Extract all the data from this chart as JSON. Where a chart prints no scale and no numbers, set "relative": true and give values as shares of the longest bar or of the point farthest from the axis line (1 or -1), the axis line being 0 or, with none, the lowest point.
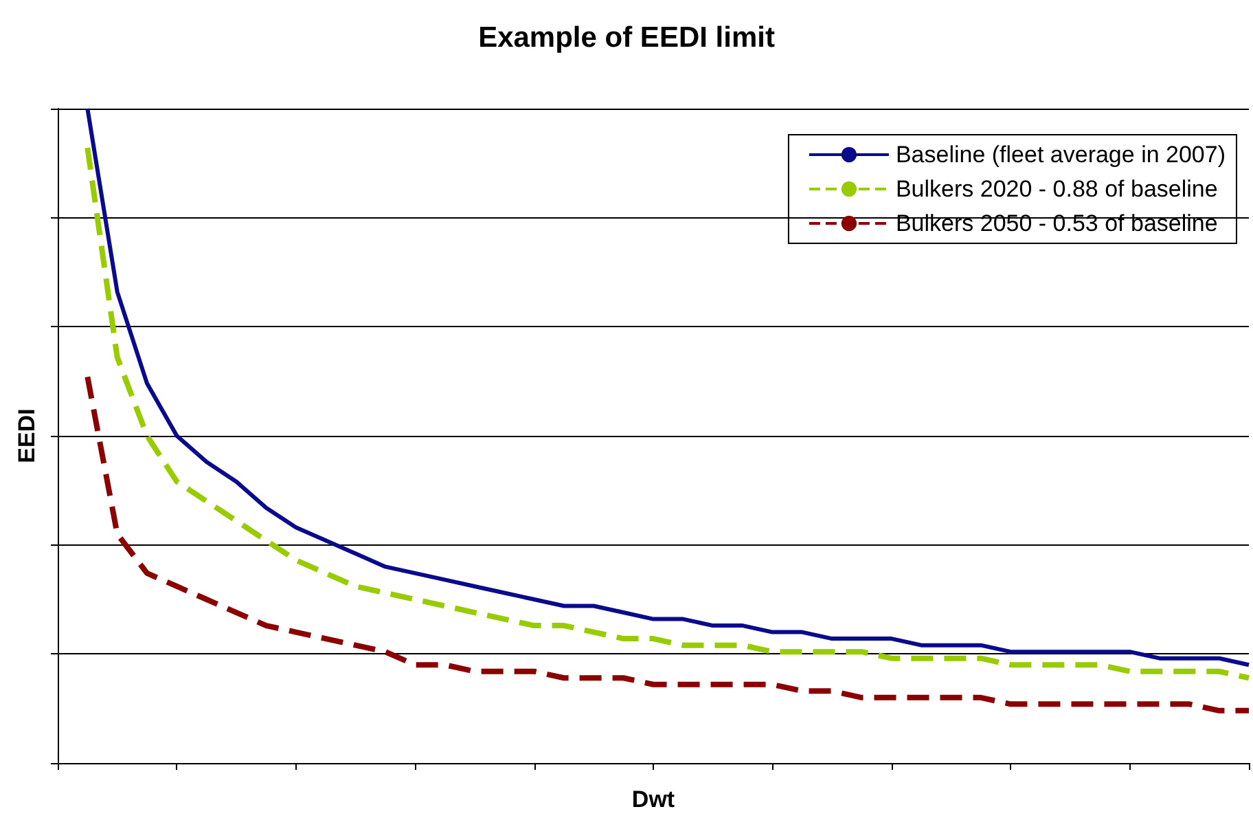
{
  "chart_data": {
    "type": "line",
    "title": "Example of EEDI limit",
    "xlabel": "Dwt",
    "ylabel": "EEDI",
    "relative": true,
    "grid": "y",
    "legend": "top right",
    "marker": "none",
    "categories": [
      null,
      null,
      null,
      null,
      null,
      null,
      null,
      null,
      null,
      null,
      null,
      null,
      null,
      null,
      null,
      null,
      null,
      null,
      null,
      null,
      null,
      null,
      null,
      null,
      null,
      null,
      null,
      null,
      null,
      null,
      null,
      null,
      null,
      null,
      null,
      null,
      null,
      null,
      null,
      null,
      null
    ],
    "series": [
      {
        "name": "Baseline (fleet average in 2007)",
        "color": "#0a0a8c",
        "line_style": "solid",
        "values": [
          null,
          1,
          0.72,
          0.58,
          0.5,
          0.46,
          0.43,
          0.39,
          0.36,
          0.34,
          0.32,
          0.3,
          0.29,
          0.28,
          0.27,
          0.26,
          0.25,
          0.24,
          0.24,
          0.23,
          0.22,
          0.22,
          0.21,
          0.21,
          0.2,
          0.2,
          0.19,
          0.19,
          0.19,
          0.18,
          0.18,
          0.18,
          0.17,
          0.17,
          0.17,
          0.17,
          0.17,
          0.16,
          0.16,
          0.16,
          0.15
        ]
      },
      {
        "name": "Bulkers 2020 - 0.88 of baseline",
        "color": "#99cc00",
        "line_style": "dashed",
        "values": [
          null,
          0.94,
          0.62,
          0.5,
          0.43,
          0.4,
          0.37,
          0.34,
          0.31,
          0.29,
          0.27,
          0.26,
          0.25,
          0.24,
          0.23,
          0.22,
          0.21,
          0.21,
          0.2,
          0.19,
          0.19,
          0.18,
          0.18,
          0.18,
          0.17,
          0.17,
          0.17,
          0.17,
          0.16,
          0.16,
          0.16,
          0.16,
          0.15,
          0.15,
          0.15,
          0.15,
          0.14,
          0.14,
          0.14,
          0.14,
          0.13
        ]
      },
      {
        "name": "Bulkers 2050 - 0.53 of baseline",
        "color": "#8b0000",
        "line_style": "dashed",
        "values": [
          null,
          0.59,
          0.35,
          0.29,
          0.27,
          0.25,
          0.23,
          0.21,
          0.2,
          0.19,
          0.18,
          0.17,
          0.15,
          0.15,
          0.14,
          0.14,
          0.14,
          0.13,
          0.13,
          0.13,
          0.12,
          0.12,
          0.12,
          0.12,
          0.12,
          0.11,
          0.11,
          0.1,
          0.1,
          0.1,
          0.1,
          0.1,
          0.09,
          0.09,
          0.09,
          0.09,
          0.09,
          0.09,
          0.09,
          0.08,
          0.08
        ]
      }
    ]
  }
}
